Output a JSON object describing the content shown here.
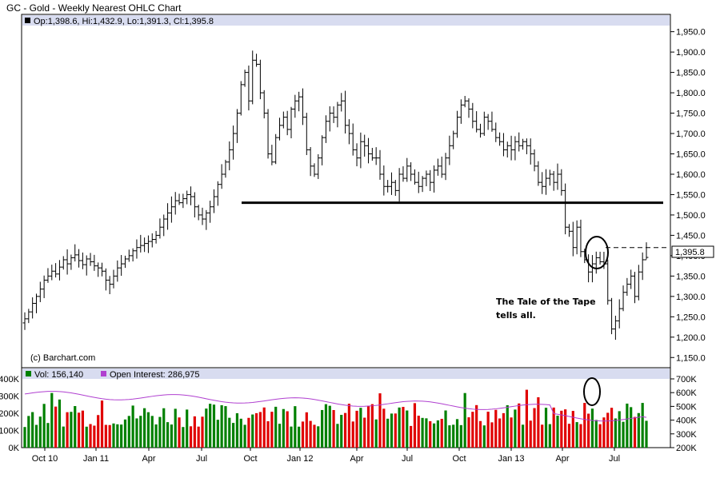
{
  "title": "GC - Gold - Weekly Nearest OHLC Chart",
  "copyright": "(c) Barchart.com",
  "annotation_lines": [
    "The Tale of the Tape",
    "tells all."
  ],
  "price_legend": "Op:1,398.6, Hi:1,432.9, Lo:1,391.3, Cl:1,395.8",
  "last_price_label": "1,395.8",
  "volume_legend": "Vol: 156,140",
  "oi_legend": "Open Interest: 286,975",
  "colors": {
    "up": "#008000",
    "down": "#e00000",
    "oi": "#b040d0",
    "frame": "#000000",
    "legendbar": "#d8dcf0"
  },
  "chart_data": [
    {
      "type": "ohlc",
      "title": "GC - Gold - Weekly Nearest OHLC Chart",
      "x_tick_labels": [
        "Oct 10",
        "Jan 11",
        "Apr",
        "Jul",
        "Oct",
        "Jan 12",
        "Apr",
        "Jul",
        "Oct",
        "Jan 13",
        "Apr",
        "Jul"
      ],
      "y_ticks": [
        "1,150.0",
        "1,200.0",
        "1,250.0",
        "1,300.0",
        "1,350.0",
        "1,400.0",
        "1,450.0",
        "1,500.0",
        "1,550.0",
        "1,600.0",
        "1,650.0",
        "1,700.0",
        "1,750.0",
        "1,800.0",
        "1,850.0",
        "1,900.0",
        "1,950.0"
      ],
      "ylim": [
        1125,
        1965
      ],
      "last": {
        "open": 1398.6,
        "high": 1432.9,
        "low": 1391.3,
        "close": 1395.8
      },
      "support_line": 1530,
      "resistance_dashed": 1420,
      "closes": [
        1245,
        1262,
        1283,
        1300,
        1318,
        1340,
        1350,
        1362,
        1355,
        1372,
        1390,
        1380,
        1395,
        1402,
        1388,
        1378,
        1392,
        1385,
        1375,
        1370,
        1362,
        1340,
        1330,
        1350,
        1370,
        1380,
        1392,
        1400,
        1412,
        1420,
        1425,
        1430,
        1435,
        1440,
        1450,
        1470,
        1490,
        1505,
        1520,
        1535,
        1530,
        1540,
        1550,
        1545,
        1520,
        1500,
        1490,
        1505,
        1520,
        1545,
        1575,
        1600,
        1630,
        1660,
        1700,
        1750,
        1820,
        1850,
        1780,
        1880,
        1870,
        1800,
        1750,
        1650,
        1630,
        1690,
        1720,
        1740,
        1710,
        1760,
        1780,
        1790,
        1740,
        1660,
        1620,
        1600,
        1640,
        1690,
        1730,
        1750,
        1740,
        1770,
        1780,
        1720,
        1700,
        1660,
        1640,
        1680,
        1670,
        1650,
        1640,
        1640,
        1600,
        1570,
        1570,
        1580,
        1560,
        1600,
        1590,
        1620,
        1600,
        1580,
        1570,
        1590,
        1600,
        1580,
        1610,
        1620,
        1600,
        1640,
        1670,
        1700,
        1740,
        1770,
        1780,
        1760,
        1730,
        1710,
        1700,
        1740,
        1730,
        1710,
        1690,
        1680,
        1660,
        1670,
        1660,
        1680,
        1670,
        1680,
        1670,
        1650,
        1620,
        1580,
        1570,
        1590,
        1600,
        1580,
        1600,
        1560,
        1470,
        1460,
        1420,
        1470,
        1410,
        1390,
        1360,
        1380,
        1395,
        1385,
        1380,
        1290,
        1220,
        1240,
        1270,
        1310,
        1330,
        1350,
        1300,
        1360,
        1390,
        1395.8
      ],
      "volume": {
        "ylim_k": [
          0,
          400
        ],
        "ticks": [
          "0K",
          "100K",
          "200K",
          "300K",
          "400K"
        ],
        "last_k": 156.1
      },
      "open_interest": {
        "ylim_k": [
          200,
          700
        ],
        "ticks": [
          "200K",
          "300K",
          "400K",
          "500K",
          "600K",
          "700K"
        ],
        "last_k": 287.0
      }
    }
  ]
}
